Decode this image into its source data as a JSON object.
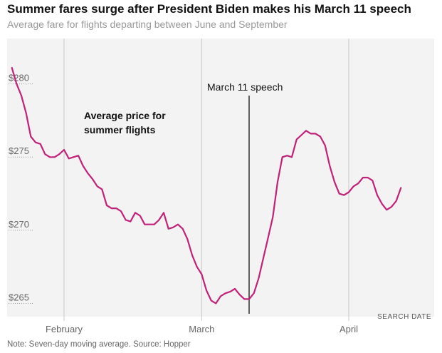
{
  "title": "Summer fares surge after President Biden makes his March 11 speech",
  "subtitle": "Average fare for flights departing between June and September",
  "note": "Note: Seven-day moving average. Source: Hopper",
  "colors": {
    "plot_bg": "#f3f3f3",
    "line": "#c2217a",
    "grid": "#c8c8c8",
    "event_line": "#000000"
  },
  "chart_data": {
    "type": "line",
    "xlabel": "SEARCH DATE",
    "ylabel": "",
    "ylim": [
      264,
      283
    ],
    "xlim": [
      "2024-01-20",
      "2024-04-19"
    ],
    "y_ticks": [
      265,
      270,
      275,
      280
    ],
    "y_tick_labels": [
      "$265",
      "$270",
      "$275",
      "$280"
    ],
    "x_ticks": [
      {
        "date": "2024-02-01",
        "label": "February"
      },
      {
        "date": "2024-03-01",
        "label": "March"
      },
      {
        "date": "2024-04-01",
        "label": "April"
      }
    ],
    "grid": "vertical",
    "annotations": [
      {
        "type": "vline",
        "date": "2024-03-11",
        "text": "March 11 speech"
      },
      {
        "type": "label",
        "date": "2024-02-04",
        "value": 277.5,
        "lines": [
          "Average price for",
          "summer flights"
        ]
      }
    ],
    "series": [
      {
        "x": [
          "2024-01-21",
          "2024-01-22",
          "2024-01-23",
          "2024-01-24",
          "2024-01-25",
          "2024-01-26",
          "2024-01-27",
          "2024-01-28",
          "2024-01-29",
          "2024-01-30",
          "2024-01-31",
          "2024-02-01",
          "2024-02-02",
          "2024-02-03",
          "2024-02-04",
          "2024-02-05",
          "2024-02-06",
          "2024-02-07",
          "2024-02-08",
          "2024-02-09",
          "2024-02-10",
          "2024-02-11",
          "2024-02-12",
          "2024-02-13",
          "2024-02-14",
          "2024-02-15",
          "2024-02-16",
          "2024-02-17",
          "2024-02-18",
          "2024-02-19",
          "2024-02-20",
          "2024-02-21",
          "2024-02-22",
          "2024-02-23",
          "2024-02-24",
          "2024-02-25",
          "2024-02-26",
          "2024-02-27",
          "2024-02-28",
          "2024-02-29",
          "2024-03-01",
          "2024-03-02",
          "2024-03-03",
          "2024-03-04",
          "2024-03-05",
          "2024-03-06",
          "2024-03-07",
          "2024-03-08",
          "2024-03-09",
          "2024-03-10",
          "2024-03-11",
          "2024-03-12",
          "2024-03-13",
          "2024-03-14",
          "2024-03-15",
          "2024-03-16",
          "2024-03-17",
          "2024-03-18",
          "2024-03-19",
          "2024-03-20",
          "2024-03-21",
          "2024-03-22",
          "2024-03-23",
          "2024-03-24",
          "2024-03-25",
          "2024-03-26",
          "2024-03-27",
          "2024-03-28",
          "2024-03-29",
          "2024-03-30",
          "2024-03-31",
          "2024-04-01",
          "2024-04-02",
          "2024-04-03",
          "2024-04-04",
          "2024-04-05",
          "2024-04-06",
          "2024-04-07",
          "2024-04-08",
          "2024-04-09",
          "2024-04-10",
          "2024-04-11",
          "2024-04-12"
        ],
        "values": [
          281.0,
          279.9,
          279.1,
          277.9,
          276.3,
          275.9,
          275.8,
          275.1,
          274.9,
          274.9,
          275.1,
          275.4,
          274.8,
          274.9,
          275.0,
          274.3,
          273.8,
          273.4,
          272.9,
          272.7,
          271.6,
          271.4,
          271.4,
          271.2,
          270.6,
          270.5,
          271.1,
          270.9,
          270.3,
          270.3,
          270.3,
          270.6,
          271.1,
          270.0,
          270.1,
          270.3,
          270.0,
          269.3,
          268.2,
          267.4,
          266.9,
          265.8,
          265.1,
          264.9,
          265.4,
          265.6,
          265.7,
          265.9,
          265.5,
          265.2,
          265.2,
          265.6,
          266.6,
          268.0,
          269.4,
          270.8,
          273.2,
          274.9,
          275.0,
          274.9,
          276.1,
          276.4,
          276.7,
          276.5,
          276.5,
          276.3,
          275.7,
          274.3,
          273.2,
          272.4,
          272.3,
          272.5,
          272.9,
          273.1,
          273.5,
          273.5,
          273.3,
          272.3,
          271.7,
          271.3,
          271.5,
          271.9,
          272.8
        ]
      }
    ]
  }
}
